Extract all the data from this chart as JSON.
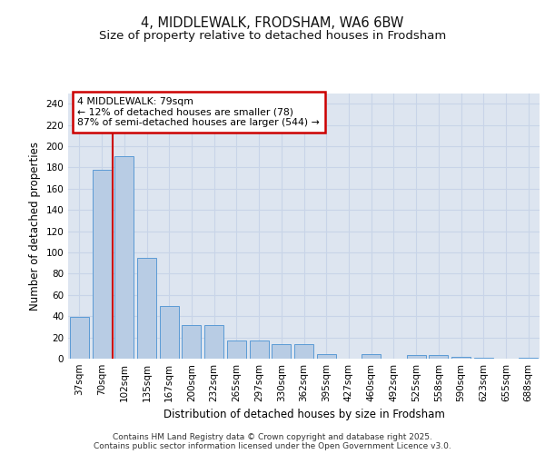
{
  "title": "4, MIDDLEWALK, FRODSHAM, WA6 6BW",
  "subtitle": "Size of property relative to detached houses in Frodsham",
  "xlabel": "Distribution of detached houses by size in Frodsham",
  "ylabel": "Number of detached properties",
  "categories": [
    "37sqm",
    "70sqm",
    "102sqm",
    "135sqm",
    "167sqm",
    "200sqm",
    "232sqm",
    "265sqm",
    "297sqm",
    "330sqm",
    "362sqm",
    "395sqm",
    "427sqm",
    "460sqm",
    "492sqm",
    "525sqm",
    "558sqm",
    "590sqm",
    "623sqm",
    "655sqm",
    "688sqm"
  ],
  "values": [
    39,
    178,
    191,
    95,
    50,
    32,
    32,
    17,
    17,
    14,
    14,
    4,
    0,
    4,
    0,
    3,
    3,
    2,
    1,
    0,
    1
  ],
  "bar_color": "#b8cce4",
  "bar_edgecolor": "#5b9bd5",
  "grid_color": "#c8d4e8",
  "background_color": "#dde5f0",
  "vline_x": 1.5,
  "vline_color": "#cc0000",
  "annotation_text": "4 MIDDLEWALK: 79sqm\n← 12% of detached houses are smaller (78)\n87% of semi-detached houses are larger (544) →",
  "annotation_box_color": "#cc0000",
  "ylim": [
    0,
    250
  ],
  "yticks": [
    0,
    20,
    40,
    60,
    80,
    100,
    120,
    140,
    160,
    180,
    200,
    220,
    240
  ],
  "footer": "Contains HM Land Registry data © Crown copyright and database right 2025.\nContains public sector information licensed under the Open Government Licence v3.0.",
  "title_fontsize": 10.5,
  "subtitle_fontsize": 9.5,
  "axis_label_fontsize": 8.5,
  "tick_fontsize": 7.5,
  "footer_fontsize": 6.5
}
